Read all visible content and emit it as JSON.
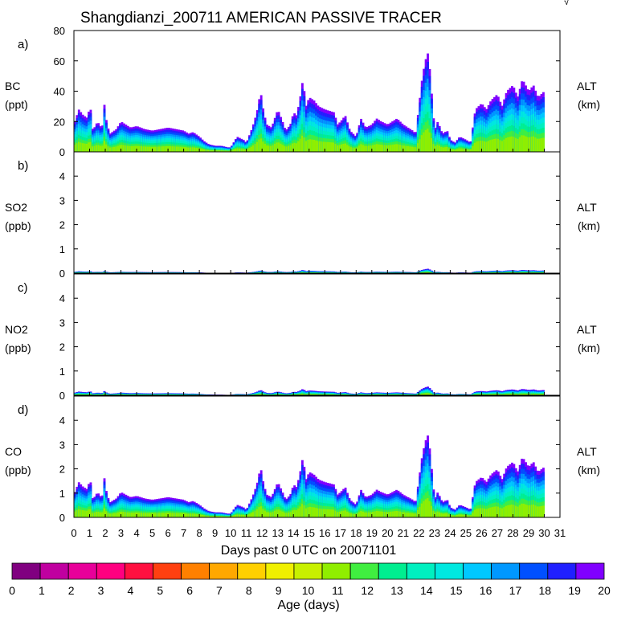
{
  "chart_data": {
    "type": "area",
    "title": "Shangdianzi_200711 AMERICAN PASSIVE TRACER",
    "corner_mark": "√",
    "xlabel": "Days past 0 UTC on 20071101",
    "x_ticks": [
      "0",
      "1",
      "2",
      "3",
      "4",
      "5",
      "6",
      "7",
      "8",
      "9",
      "10",
      "11",
      "12",
      "13",
      "14",
      "15",
      "16",
      "17",
      "18",
      "19",
      "20",
      "21",
      "22",
      "23",
      "24",
      "25",
      "26",
      "27",
      "28",
      "29",
      "30",
      "31"
    ],
    "xlim": [
      0,
      31
    ],
    "panels": [
      {
        "id": "a)",
        "species": "BC",
        "unit": "(ppt)",
        "right_label": "ALT",
        "right_unit": "(km)",
        "ylim": [
          0,
          80
        ],
        "y_ticks": [
          "0",
          "20",
          "40",
          "60",
          "80"
        ],
        "scale": 1.0
      },
      {
        "id": "b)",
        "species": "SO2",
        "unit": "(ppb)",
        "right_label": "ALT",
        "right_unit": "(km)",
        "ylim": [
          0,
          5
        ],
        "y_ticks": [
          "0",
          "1",
          "2",
          "3",
          "4"
        ],
        "scale": 0.0028
      },
      {
        "id": "c)",
        "species": "NO2",
        "unit": "(ppb)",
        "right_label": "ALT",
        "right_unit": "(km)",
        "ylim": [
          0,
          5
        ],
        "y_ticks": [
          "0",
          "1",
          "2",
          "3",
          "4"
        ],
        "scale": 0.0055
      },
      {
        "id": "d)",
        "species": "CO",
        "unit": "(ppb)",
        "right_label": "ALT",
        "right_unit": "(km)",
        "ylim": [
          0,
          5
        ],
        "y_ticks": [
          "0",
          "1",
          "2",
          "3",
          "4"
        ],
        "scale": 0.052
      }
    ],
    "bc_profile": {
      "x": [
        0,
        0.3,
        0.6,
        0.9,
        1.0,
        1.2,
        1.5,
        1.8,
        1.9,
        2.1,
        2.3,
        2.7,
        3.0,
        3.3,
        3.6,
        4.0,
        4.5,
        5.0,
        5.5,
        6.0,
        6.5,
        7.0,
        7.3,
        7.6,
        8.0,
        8.3,
        8.6,
        9.0,
        9.4,
        9.8,
        10.0,
        10.4,
        10.8,
        11.0,
        11.3,
        11.5,
        11.7,
        11.9,
        12.1,
        12.3,
        12.6,
        12.8,
        13.0,
        13.3,
        13.5,
        13.8,
        14.0,
        14.2,
        14.4,
        14.6,
        14.8,
        15.0,
        15.3,
        15.6,
        16.0,
        16.3,
        16.6,
        16.8,
        17.0,
        17.3,
        17.6,
        18.0,
        18.3,
        18.6,
        19.0,
        19.3,
        19.6,
        20.0,
        20.3,
        20.6,
        21.0,
        21.3,
        21.6,
        21.8,
        22.0,
        22.2,
        22.4,
        22.6,
        22.8,
        23.0,
        23.2,
        23.5,
        23.8,
        24.0,
        24.3,
        24.6,
        25.0,
        25.3,
        25.6,
        26.0,
        26.3,
        26.6,
        27.0,
        27.3,
        27.6,
        28.0,
        28.3,
        28.6,
        29.0,
        29.3,
        29.6,
        30.0
      ],
      "y": [
        18,
        28,
        24,
        22,
        34,
        14,
        20,
        15,
        34,
        18,
        12,
        15,
        20,
        18,
        16,
        17,
        15,
        14,
        15,
        16,
        15,
        14,
        12,
        13,
        10,
        7,
        5,
        4,
        4,
        3,
        3,
        10,
        8,
        6,
        14,
        20,
        28,
        40,
        26,
        18,
        16,
        22,
        28,
        20,
        14,
        18,
        26,
        24,
        34,
        48,
        30,
        36,
        34,
        30,
        28,
        27,
        26,
        18,
        20,
        24,
        14,
        10,
        22,
        16,
        18,
        22,
        20,
        18,
        20,
        22,
        18,
        16,
        14,
        12,
        30,
        48,
        60,
        66,
        40,
        14,
        20,
        12,
        14,
        8,
        6,
        10,
        8,
        6,
        28,
        32,
        28,
        34,
        38,
        30,
        40,
        44,
        36,
        48,
        40,
        44,
        36,
        40
      ]
    },
    "colorbar": {
      "label": "Age (days)",
      "ticks": [
        "0",
        "1",
        "2",
        "3",
        "4",
        "5",
        "6",
        "7",
        "8",
        "9",
        "10",
        "11",
        "12",
        "13",
        "14",
        "15",
        "16",
        "17",
        "18",
        "19",
        "20"
      ],
      "colors": [
        "#800080",
        "#c000a0",
        "#e8009a",
        "#ff0080",
        "#ff1040",
        "#ff4010",
        "#ff8000",
        "#ffa800",
        "#ffd000",
        "#f0f000",
        "#c8f000",
        "#90ee00",
        "#40ee40",
        "#00ee90",
        "#00f0c0",
        "#00e8e0",
        "#00c8ff",
        "#0098ff",
        "#0050ff",
        "#2020ff",
        "#8000ff"
      ]
    },
    "profile_layer_colors": [
      "#8000ff",
      "#2020ff",
      "#0050ff",
      "#0098ff",
      "#00c8ff",
      "#00e8e0",
      "#00f0c0",
      "#00ee90",
      "#40ee40",
      "#90ee00"
    ]
  }
}
